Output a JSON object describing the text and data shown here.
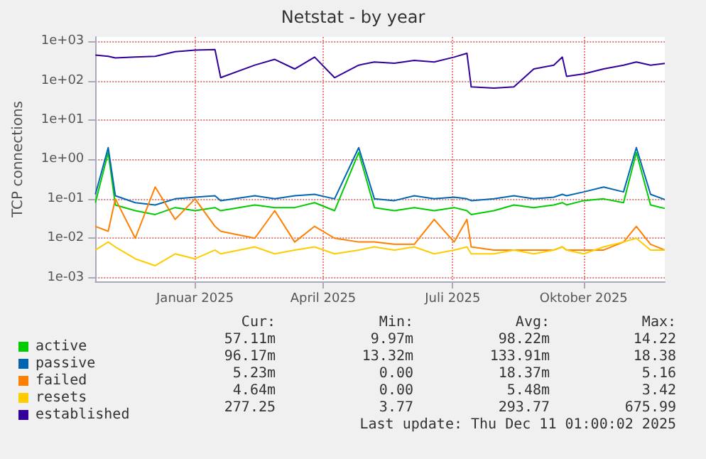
{
  "chart_data": {
    "type": "line",
    "title": "Netstat - by year",
    "ylabel": "TCP connections",
    "log": "y",
    "grid": true,
    "legend": "bottom left",
    "xlim": [
      "2024-11-06",
      "2025-12-11"
    ],
    "xticks": [
      {
        "value": "2025-01-15",
        "label": "Januar 2025"
      },
      {
        "value": "2025-04-15",
        "label": "April 2025"
      },
      {
        "value": "2025-07-15",
        "label": "Juli 2025"
      },
      {
        "value": "2025-10-15",
        "label": "Oktober 2025"
      }
    ],
    "ylim": [
      0.0008,
      1300
    ],
    "yticks": [
      {
        "value": 0.001,
        "label": "1e-03"
      },
      {
        "value": 0.01,
        "label": "1e-02"
      },
      {
        "value": 0.1,
        "label": "1e-01"
      },
      {
        "value": 1,
        "label": "1e+00"
      },
      {
        "value": 10,
        "label": "1e+01"
      },
      {
        "value": 100,
        "label": "1e+02"
      },
      {
        "value": 1000,
        "label": "1e+03"
      }
    ],
    "x": [
      "2024-11-06",
      "2024-11-15",
      "2024-11-20",
      "2024-12-04",
      "2024-12-18",
      "2025-01-01",
      "2025-01-15",
      "2025-01-29",
      "2025-02-02",
      "2025-02-26",
      "2025-03-12",
      "2025-03-26",
      "2025-04-09",
      "2025-04-23",
      "2025-05-10",
      "2025-05-21",
      "2025-06-04",
      "2025-06-18",
      "2025-07-02",
      "2025-07-16",
      "2025-07-25",
      "2025-07-28",
      "2025-08-13",
      "2025-08-27",
      "2025-09-10",
      "2025-09-24",
      "2025-09-30",
      "2025-10-03",
      "2025-10-15",
      "2025-10-29",
      "2025-11-12",
      "2025-11-21",
      "2025-12-01",
      "2025-12-11"
    ],
    "series": [
      {
        "name": "active",
        "color": "#00cc00",
        "values": [
          0.08,
          1.5,
          0.07,
          0.05,
          0.04,
          0.06,
          0.05,
          0.06,
          0.05,
          0.07,
          0.06,
          0.06,
          0.08,
          0.05,
          1.5,
          0.06,
          0.05,
          0.06,
          0.05,
          0.06,
          0.05,
          0.04,
          0.05,
          0.07,
          0.06,
          0.07,
          0.08,
          0.07,
          0.09,
          0.1,
          0.08,
          1.5,
          0.07,
          0.057
        ]
      },
      {
        "name": "passive",
        "color": "#0066b3",
        "values": [
          0.13,
          2,
          0.12,
          0.08,
          0.07,
          0.1,
          0.11,
          0.12,
          0.09,
          0.12,
          0.1,
          0.12,
          0.13,
          0.1,
          2,
          0.1,
          0.09,
          0.12,
          0.1,
          0.11,
          0.1,
          0.09,
          0.1,
          0.12,
          0.1,
          0.11,
          0.13,
          0.12,
          0.15,
          0.2,
          0.15,
          2,
          0.13,
          0.096
        ]
      },
      {
        "name": "failed",
        "color": "#ff8000",
        "values": [
          0.02,
          0.015,
          0.1,
          0.01,
          0.2,
          0.03,
          0.1,
          0.02,
          0.015,
          0.01,
          0.05,
          0.008,
          0.02,
          0.01,
          0.008,
          0.008,
          0.007,
          0.007,
          0.03,
          0.008,
          0.03,
          0.006,
          0.005,
          0.005,
          0.005,
          0.005,
          0.006,
          0.005,
          0.005,
          0.005,
          0.008,
          0.02,
          0.007,
          0.005
        ]
      },
      {
        "name": "resets",
        "color": "#ffcc00",
        "values": [
          0.005,
          0.008,
          0.006,
          0.003,
          0.002,
          0.004,
          0.003,
          0.005,
          0.004,
          0.006,
          0.004,
          0.005,
          0.006,
          0.004,
          0.005,
          0.006,
          0.005,
          0.006,
          0.004,
          0.005,
          0.006,
          0.004,
          0.004,
          0.005,
          0.004,
          0.005,
          0.006,
          0.005,
          0.004,
          0.006,
          0.008,
          0.01,
          0.005,
          0.005
        ]
      },
      {
        "name": "established",
        "color": "#330099",
        "values": [
          450,
          420,
          380,
          400,
          420,
          550,
          600,
          620,
          120,
          250,
          350,
          200,
          400,
          120,
          250,
          300,
          280,
          330,
          300,
          400,
          500,
          70,
          65,
          70,
          200,
          250,
          400,
          130,
          150,
          200,
          250,
          300,
          250,
          277
        ]
      }
    ],
    "annotations": [
      "Cur:",
      "Min:",
      "Avg:",
      "Max:",
      "57.11m",
      "9.97m",
      "98.22m",
      "14.22",
      "96.17m",
      "13.32m",
      "133.91m",
      "18.38",
      "5.23m",
      "0.00",
      "18.37m",
      "5.16",
      "4.64m",
      "0.00",
      "5.48m",
      "3.42",
      "277.25",
      "3.77",
      "293.77",
      "675.99",
      "Last update: Thu Dec 11 01:00:02 2025"
    ]
  }
}
